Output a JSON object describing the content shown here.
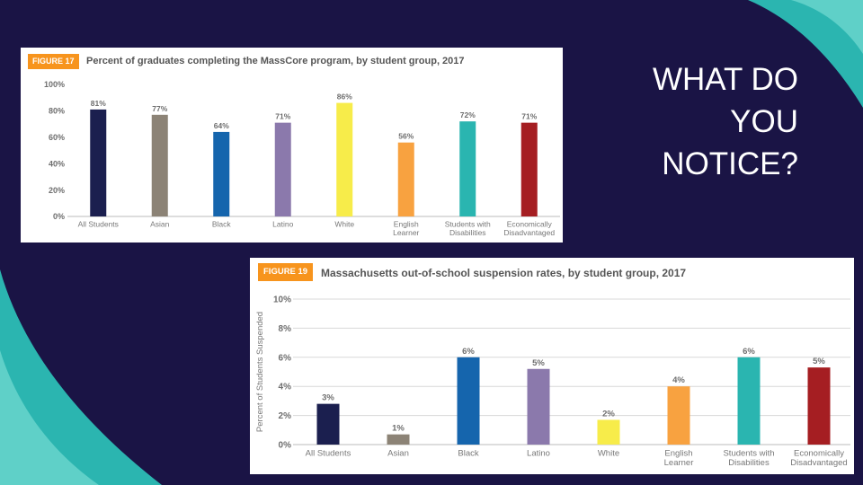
{
  "slide": {
    "question": "WHAT DO\nYOU\nNOTICE?",
    "colors": {
      "background": "#1a1445",
      "accent": "#2bb5b0",
      "badge": "#f7941d"
    }
  },
  "chart_data": [
    {
      "type": "bar",
      "badge": "FIGURE 17",
      "title": "Percent of graduates completing the MassCore program, by student group, 2017",
      "xlabel": "",
      "ylabel": "",
      "ylim": [
        0,
        100
      ],
      "yticks": [
        0,
        20,
        40,
        60,
        80,
        100
      ],
      "ytick_labels": [
        "0%",
        "20%",
        "40%",
        "60%",
        "80%",
        "100%"
      ],
      "categories": [
        [
          "All Students"
        ],
        [
          "Asian"
        ],
        [
          "Black"
        ],
        [
          "Latino"
        ],
        [
          "White"
        ],
        [
          "English",
          "Learner"
        ],
        [
          "Students with",
          "Disabilities"
        ],
        [
          "Economically",
          "Disadvantaged"
        ]
      ],
      "values": [
        81,
        77,
        64,
        71,
        86,
        56,
        72,
        71
      ],
      "value_labels": [
        "81%",
        "77%",
        "64%",
        "71%",
        "86%",
        "56%",
        "72%",
        "71%"
      ],
      "colors": [
        "#1b1f4f",
        "#8c8376",
        "#1565ad",
        "#8b79ac",
        "#f7ec4a",
        "#f8a240",
        "#2ab5b0",
        "#a51e22"
      ],
      "grid": false
    },
    {
      "type": "bar",
      "badge": "FIGURE 19",
      "title": "Massachusetts out-of-school suspension rates, by student group, 2017",
      "xlabel": "",
      "ylabel": "Percent of Students Suspended",
      "ylim": [
        0,
        10
      ],
      "yticks": [
        0,
        2,
        4,
        6,
        8,
        10
      ],
      "ytick_labels": [
        "0%",
        "2%",
        "4%",
        "6%",
        "8%",
        "10%"
      ],
      "categories": [
        [
          "All Students"
        ],
        [
          "Asian"
        ],
        [
          "Black"
        ],
        [
          "Latino"
        ],
        [
          "White"
        ],
        [
          "English",
          "Learner"
        ],
        [
          "Students with",
          "Disabilities"
        ],
        [
          "Economically",
          "Disadvantaged"
        ]
      ],
      "values": [
        2.8,
        0.7,
        6.0,
        5.2,
        1.7,
        4.0,
        6.0,
        5.3
      ],
      "value_labels": [
        "3%",
        "1%",
        "6%",
        "5%",
        "2%",
        "4%",
        "6%",
        "5%"
      ],
      "colors": [
        "#1b1f4f",
        "#8c8376",
        "#1565ad",
        "#8b79ac",
        "#f7ec4a",
        "#f8a240",
        "#2ab5b0",
        "#a51e22"
      ],
      "grid": true
    }
  ]
}
